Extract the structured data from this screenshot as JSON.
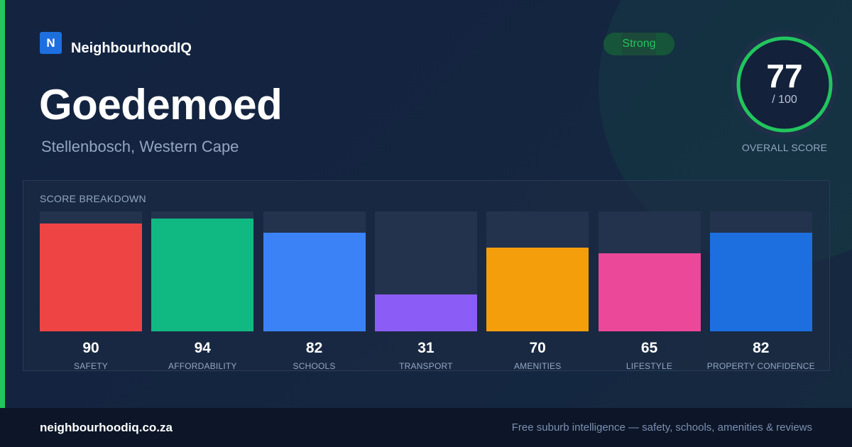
{
  "brand": {
    "logo_letter": "N",
    "name": "NeighbourhoodIQ"
  },
  "suburb": {
    "name": "Goedemoed",
    "location": "Stellenbosch, Western Cape"
  },
  "status": {
    "label": "Strong",
    "color": "#22c55e"
  },
  "overall": {
    "score": "77",
    "max_label": "/ 100",
    "label": "OVERALL SCORE",
    "fraction": 0.77
  },
  "breakdown": {
    "title": "SCORE BREAKDOWN",
    "items": [
      {
        "label": "SAFETY",
        "value": 90,
        "color": "#ef4444"
      },
      {
        "label": "AFFORDABILITY",
        "value": 94,
        "color": "#10b981"
      },
      {
        "label": "SCHOOLS",
        "value": 82,
        "color": "#3b82f6"
      },
      {
        "label": "TRANSPORT",
        "value": 31,
        "color": "#8b5cf6"
      },
      {
        "label": "AMENITIES",
        "value": 70,
        "color": "#f59e0b"
      },
      {
        "label": "LIFESTYLE",
        "value": 65,
        "color": "#ec4899"
      },
      {
        "label": "PROPERTY CONFIDENCE",
        "value": 82,
        "color": "#1d6fe0"
      }
    ]
  },
  "footer": {
    "url": "neighbourhoodiq.co.za",
    "tagline": "Free suburb intelligence — safety, schools, amenities & reviews"
  }
}
